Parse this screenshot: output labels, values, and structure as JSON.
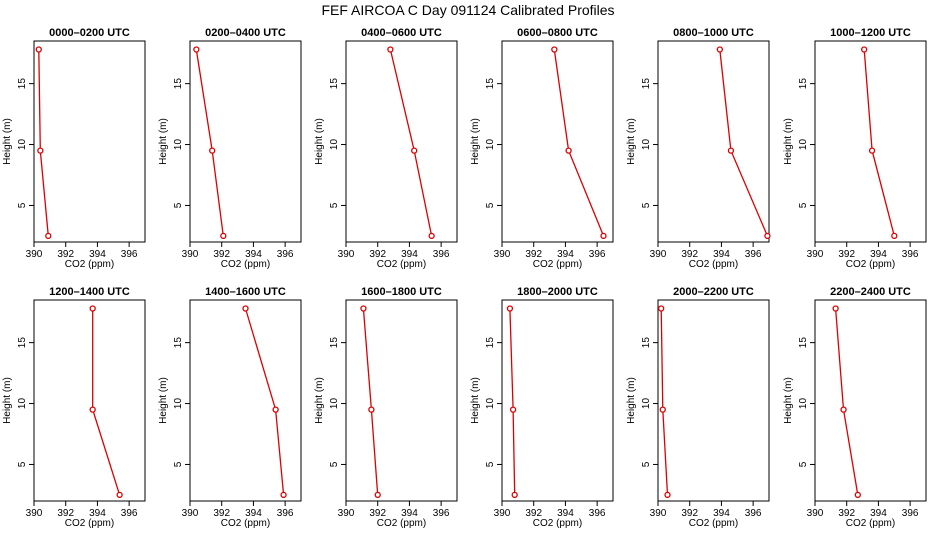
{
  "title": "FEF AIRCOA C  Day 091124  Calibrated Profiles",
  "colors": {
    "line": "#dd0000",
    "point": "#dd0000",
    "axis": "#000000"
  },
  "chart_data": [
    {
      "type": "line",
      "title": "0000–0200 UTC",
      "xlabel": "CO2 (ppm)",
      "ylabel": "Height (m)",
      "xlim": [
        390,
        397
      ],
      "ylim": [
        2,
        18.5
      ],
      "xticks": [
        390,
        392,
        394,
        396
      ],
      "yticks": [
        5,
        10,
        15
      ],
      "points": [
        {
          "x": 390.3,
          "y": 17.8
        },
        {
          "x": 390.4,
          "y": 9.5
        },
        {
          "x": 390.9,
          "y": 2.5
        }
      ]
    },
    {
      "type": "line",
      "title": "0200–0400 UTC",
      "xlabel": "CO2 (ppm)",
      "ylabel": "Height (m)",
      "xlim": [
        390,
        397
      ],
      "ylim": [
        2,
        18.5
      ],
      "xticks": [
        390,
        392,
        394,
        396
      ],
      "yticks": [
        5,
        10,
        15
      ],
      "points": [
        {
          "x": 390.4,
          "y": 17.8
        },
        {
          "x": 391.4,
          "y": 9.5
        },
        {
          "x": 392.1,
          "y": 2.5
        }
      ]
    },
    {
      "type": "line",
      "title": "0400–0600 UTC",
      "xlabel": "CO2 (ppm)",
      "ylabel": "Height (m)",
      "xlim": [
        390,
        397
      ],
      "ylim": [
        2,
        18.5
      ],
      "xticks": [
        390,
        392,
        394,
        396
      ],
      "yticks": [
        5,
        10,
        15
      ],
      "points": [
        {
          "x": 392.8,
          "y": 17.8
        },
        {
          "x": 394.3,
          "y": 9.5
        },
        {
          "x": 395.4,
          "y": 2.5
        }
      ]
    },
    {
      "type": "line",
      "title": "0600–0800 UTC",
      "xlabel": "CO2 (ppm)",
      "ylabel": "Height (m)",
      "xlim": [
        390,
        397
      ],
      "ylim": [
        2,
        18.5
      ],
      "xticks": [
        390,
        392,
        394,
        396
      ],
      "yticks": [
        5,
        10,
        15
      ],
      "points": [
        {
          "x": 393.3,
          "y": 17.8
        },
        {
          "x": 394.2,
          "y": 9.5
        },
        {
          "x": 396.4,
          "y": 2.5
        }
      ]
    },
    {
      "type": "line",
      "title": "0800–1000 UTC",
      "xlabel": "CO2 (ppm)",
      "ylabel": "Height (m)",
      "xlim": [
        390,
        397
      ],
      "ylim": [
        2,
        18.5
      ],
      "xticks": [
        390,
        392,
        394,
        396
      ],
      "yticks": [
        5,
        10,
        15
      ],
      "points": [
        {
          "x": 393.9,
          "y": 17.8
        },
        {
          "x": 394.6,
          "y": 9.5
        },
        {
          "x": 396.9,
          "y": 2.5
        }
      ]
    },
    {
      "type": "line",
      "title": "1000–1200 UTC",
      "xlabel": "CO2 (ppm)",
      "ylabel": "Height (m)",
      "xlim": [
        390,
        397
      ],
      "ylim": [
        2,
        18.5
      ],
      "xticks": [
        390,
        392,
        394,
        396
      ],
      "yticks": [
        5,
        10,
        15
      ],
      "points": [
        {
          "x": 393.1,
          "y": 17.8
        },
        {
          "x": 393.6,
          "y": 9.5
        },
        {
          "x": 395.0,
          "y": 2.5
        }
      ]
    },
    {
      "type": "line",
      "title": "1200–1400 UTC",
      "xlabel": "CO2 (ppm)",
      "ylabel": "Height (m)",
      "xlim": [
        390,
        397
      ],
      "ylim": [
        2,
        18.5
      ],
      "xticks": [
        390,
        392,
        394,
        396
      ],
      "yticks": [
        5,
        10,
        15
      ],
      "points": [
        {
          "x": 393.7,
          "y": 17.8
        },
        {
          "x": 393.7,
          "y": 9.5
        },
        {
          "x": 395.4,
          "y": 2.5
        }
      ]
    },
    {
      "type": "line",
      "title": "1400–1600 UTC",
      "xlabel": "CO2 (ppm)",
      "ylabel": "Height (m)",
      "xlim": [
        390,
        397
      ],
      "ylim": [
        2,
        18.5
      ],
      "xticks": [
        390,
        392,
        394,
        396
      ],
      "yticks": [
        5,
        10,
        15
      ],
      "points": [
        {
          "x": 393.5,
          "y": 17.8
        },
        {
          "x": 395.4,
          "y": 9.5
        },
        {
          "x": 395.9,
          "y": 2.5
        }
      ]
    },
    {
      "type": "line",
      "title": "1600–1800 UTC",
      "xlabel": "CO2 (ppm)",
      "ylabel": "Height (m)",
      "xlim": [
        390,
        397
      ],
      "ylim": [
        2,
        18.5
      ],
      "xticks": [
        390,
        392,
        394,
        396
      ],
      "yticks": [
        5,
        10,
        15
      ],
      "points": [
        {
          "x": 391.1,
          "y": 17.8
        },
        {
          "x": 391.6,
          "y": 9.5
        },
        {
          "x": 392.0,
          "y": 2.5
        }
      ]
    },
    {
      "type": "line",
      "title": "1800–2000 UTC",
      "xlabel": "CO2 (ppm)",
      "ylabel": "Height (m)",
      "xlim": [
        390,
        397
      ],
      "ylim": [
        2,
        18.5
      ],
      "xticks": [
        390,
        392,
        394,
        396
      ],
      "yticks": [
        5,
        10,
        15
      ],
      "points": [
        {
          "x": 390.5,
          "y": 17.8
        },
        {
          "x": 390.7,
          "y": 9.5
        },
        {
          "x": 390.8,
          "y": 2.5
        }
      ]
    },
    {
      "type": "line",
      "title": "2000–2200 UTC",
      "xlabel": "CO2 (ppm)",
      "ylabel": "Height (m)",
      "xlim": [
        390,
        397
      ],
      "ylim": [
        2,
        18.5
      ],
      "xticks": [
        390,
        392,
        394,
        396
      ],
      "yticks": [
        5,
        10,
        15
      ],
      "points": [
        {
          "x": 390.2,
          "y": 17.8
        },
        {
          "x": 390.3,
          "y": 9.5
        },
        {
          "x": 390.6,
          "y": 2.5
        }
      ]
    },
    {
      "type": "line",
      "title": "2200–2400 UTC",
      "xlabel": "CO2 (ppm)",
      "ylabel": "Height (m)",
      "xlim": [
        390,
        397
      ],
      "ylim": [
        2,
        18.5
      ],
      "xticks": [
        390,
        392,
        394,
        396
      ],
      "yticks": [
        5,
        10,
        15
      ],
      "points": [
        {
          "x": 391.3,
          "y": 17.8
        },
        {
          "x": 391.8,
          "y": 9.5
        },
        {
          "x": 392.7,
          "y": 2.5
        }
      ]
    }
  ]
}
